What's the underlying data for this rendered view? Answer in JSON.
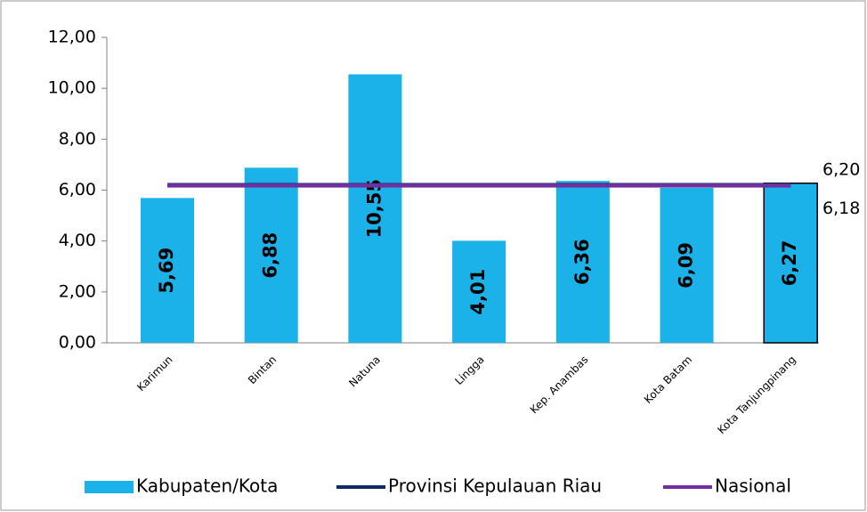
{
  "chart_data": {
    "type": "bar",
    "categories": [
      "Karimun",
      "Bintan",
      "Natuna",
      "Lingga",
      "Kep. Anambas",
      "Kota Batam",
      "Kota Tanjungpinang"
    ],
    "series": [
      {
        "name": "Kabupaten/Kota",
        "type": "bar",
        "color": "#1ab2e8",
        "values": [
          5.69,
          6.88,
          10.55,
          4.01,
          6.36,
          6.09,
          6.27
        ],
        "value_labels": [
          "5,69",
          "6,88",
          "10,55",
          "4,01",
          "6,36",
          "6,09",
          "6,27"
        ]
      },
      {
        "name": "Provinsi Kepulauan Riau",
        "type": "line",
        "color": "#0d2b5e",
        "values": [
          6.2,
          6.2,
          6.2,
          6.2,
          6.2,
          6.2,
          6.2
        ],
        "value_labels": [
          null,
          null,
          null,
          null,
          null,
          null,
          "6,20"
        ]
      },
      {
        "name": "Nasional",
        "type": "line",
        "color": "#7030a0",
        "values": [
          6.18,
          6.18,
          6.18,
          6.18,
          6.18,
          6.18,
          6.18
        ],
        "value_labels": [
          null,
          null,
          null,
          null,
          null,
          null,
          "6,18"
        ]
      }
    ],
    "ylim": [
      0,
      12
    ],
    "yticks": [
      {
        "value": 0,
        "label": "0,00"
      },
      {
        "value": 2,
        "label": "2,00"
      },
      {
        "value": 4,
        "label": "4,00"
      },
      {
        "value": 6,
        "label": "6,00"
      },
      {
        "value": 8,
        "label": "8,00"
      },
      {
        "value": 10,
        "label": "10,00"
      },
      {
        "value": 12,
        "label": "12,00"
      }
    ],
    "grid": false,
    "legend": "bottom"
  }
}
